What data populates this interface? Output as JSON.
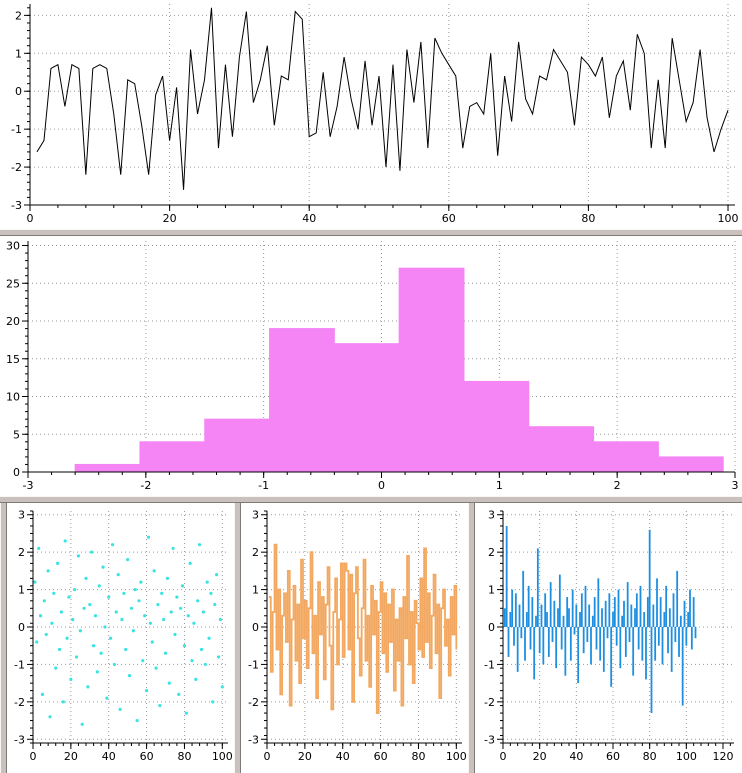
{
  "window": {
    "background": "#ffffff"
  },
  "separators": {
    "color": "#c9c1bd",
    "highlight": "#f8f5f3",
    "shadow": "#807a76"
  },
  "chart_data": [
    {
      "id": "top-line",
      "type": "line",
      "mark": "line",
      "title": "",
      "color": "#000000",
      "line_width": 1,
      "grid": true,
      "xlim": [
        0,
        101
      ],
      "ylim": [
        -3,
        2.3
      ],
      "x_ticks": [
        0,
        20,
        40,
        60,
        80,
        100
      ],
      "y_ticks": [
        -3,
        -2,
        -1,
        0,
        1,
        2
      ],
      "margins": {
        "l": 30,
        "r": 7,
        "t": 4,
        "b": 24
      },
      "values": [
        -1.6,
        -1.3,
        0.6,
        0.7,
        -0.4,
        0.7,
        0.6,
        -2.2,
        0.6,
        0.7,
        0.6,
        -0.6,
        -2.2,
        0.3,
        0.2,
        -0.9,
        -2.2,
        -0.1,
        0.4,
        -1.3,
        0.1,
        -2.6,
        1.1,
        -0.6,
        0.3,
        2.2,
        -1.5,
        0.7,
        -1.2,
        0.9,
        2.1,
        -0.3,
        0.3,
        1.2,
        -0.9,
        0.4,
        0.3,
        2.1,
        1.9,
        -1.2,
        -1.1,
        0.5,
        -1.2,
        -0.4,
        0.9,
        -0.2,
        -1.0,
        0.8,
        -0.9,
        0.4,
        -2.0,
        0.7,
        -2.1,
        1.1,
        -0.3,
        1.3,
        -1.5,
        1.4,
        1.0,
        0.7,
        0.4,
        -1.5,
        -0.4,
        -0.3,
        -0.6,
        1.0,
        -1.7,
        0.4,
        -0.8,
        1.3,
        -0.2,
        -0.6,
        0.4,
        0.3,
        1.1,
        0.8,
        0.5,
        -0.9,
        0.9,
        0.7,
        0.4,
        0.9,
        -0.7,
        0.4,
        0.8,
        -0.5,
        1.5,
        1.0,
        -1.5,
        0.3,
        -1.5,
        1.4,
        0.3,
        -0.8,
        -0.3,
        1.1,
        -0.7,
        -1.6,
        -1.0,
        -0.5
      ]
    },
    {
      "id": "histogram",
      "type": "bar",
      "title": "",
      "color": "#f584f5",
      "grid": true,
      "xlim": [
        -3,
        3
      ],
      "ylim": [
        0,
        30.6
      ],
      "x_ticks": [
        -3,
        -2,
        -1,
        0,
        1,
        2,
        3
      ],
      "y_ticks": [
        0,
        5,
        10,
        15,
        20,
        25,
        30
      ],
      "margins": {
        "l": 28,
        "r": 7,
        "t": 5,
        "b": 24
      },
      "bin_edges": [
        -2.6,
        -2.05,
        -1.5,
        -0.95,
        -0.4,
        0.15,
        0.7,
        1.25,
        1.8,
        2.35,
        2.9
      ],
      "counts": [
        1,
        4,
        7,
        19,
        17,
        27,
        12,
        6,
        4,
        2
      ]
    },
    {
      "id": "scatter-cyan",
      "type": "scatter",
      "title": "",
      "color": "#3ae3e3",
      "grid": true,
      "xlim": [
        0,
        103
      ],
      "ylim": [
        -3.1,
        3.1
      ],
      "x_ticks": [
        0,
        20,
        40,
        60,
        80,
        100
      ],
      "y_ticks": [
        -3,
        -2,
        -1,
        0,
        1,
        2,
        3
      ],
      "margins": {
        "l": 26,
        "r": 6,
        "t": 8,
        "b": 30
      },
      "values": [
        1.2,
        -0.4,
        2.1,
        0.3,
        -1.8,
        0.7,
        -0.2,
        1.5,
        -2.4,
        0.1,
        0.9,
        -1.1,
        1.7,
        -0.6,
        0.4,
        -2.0,
        2.3,
        -0.3,
        0.8,
        -1.4,
        0.2,
        1.0,
        -0.8,
        1.9,
        -0.1,
        -2.6,
        0.5,
        1.3,
        -1.6,
        0.6,
        2.0,
        -0.5,
        0.3,
        -1.2,
        1.1,
        -0.7,
        1.6,
        0.0,
        -1.9,
        0.8,
        -0.3,
        2.2,
        -1.0,
        0.4,
        1.4,
        -2.2,
        0.2,
        0.9,
        -0.6,
        1.8,
        -1.3,
        0.5,
        -0.1,
        1.0,
        -2.5,
        0.7,
        1.2,
        -0.9,
        0.3,
        -1.7,
        2.4,
        0.1,
        -0.4,
        1.5,
        -1.1,
        0.6,
        -2.1,
        0.9,
        0.2,
        -0.7,
        1.3,
        -1.5,
        0.4,
        2.1,
        -0.2,
        0.8,
        -1.8,
        0.5,
        1.1,
        -0.5,
        -2.3,
        0.3,
        1.7,
        -0.9,
        0.1,
        -1.4,
        0.7,
        2.2,
        -0.6,
        0.4,
        -1.0,
        1.2,
        -0.3,
        0.9,
        -2.0,
        0.6,
        1.4,
        -0.8,
        0.2,
        -1.6
      ]
    },
    {
      "id": "step-orange",
      "type": "line",
      "mark": "step",
      "title": "",
      "color": "#f2a860",
      "line_width": 1.8,
      "grid": true,
      "xlim": [
        0,
        103
      ],
      "ylim": [
        -3.1,
        3.1
      ],
      "x_ticks": [
        0,
        20,
        40,
        60,
        80,
        100
      ],
      "y_ticks": [
        -3,
        -2,
        -1,
        0,
        1,
        2,
        3
      ],
      "margins": {
        "l": 26,
        "r": 6,
        "t": 8,
        "b": 30
      },
      "values": [
        0.8,
        -1.2,
        0.4,
        2.2,
        -0.6,
        1.0,
        -1.8,
        0.3,
        0.9,
        -0.4,
        1.5,
        -2.1,
        0.2,
        1.1,
        -0.9,
        0.6,
        -1.5,
        1.8,
        -0.3,
        0.7,
        -1.1,
        0.5,
        2.0,
        -0.7,
        0.3,
        -1.9,
        1.2,
        -0.2,
        0.8,
        -1.4,
        0.6,
        1.6,
        -0.5,
        -2.2,
        0.4,
        1.3,
        -1.0,
        0.2,
        1.7,
        -0.8,
        1.7,
        1.5,
        -0.6,
        1.4,
        -2.0,
        0.9,
        1.6,
        -0.3,
        -1.3,
        0.5,
        1.8,
        -0.9,
        0.3,
        -1.6,
        1.1,
        -0.2,
        0.7,
        -2.3,
        0.4,
        1.2,
        -0.7,
        0.9,
        -1.2,
        0.6,
        -0.4,
        1.0,
        -1.7,
        0.2,
        -0.9,
        0.5,
        -2.1,
        0.8,
        -0.3,
        1.9,
        -1.0,
        0.4,
        -1.5,
        0.7,
        0.1,
        -0.6,
        1.3,
        -0.8,
        2.1,
        -0.4,
        0.9,
        -1.1,
        0.3,
        1.4,
        -0.7,
        0.6,
        -1.9,
        0.5,
        1.0,
        -0.5,
        0.2,
        -1.3,
        0.8,
        -0.2,
        1.1,
        -0.6
      ]
    },
    {
      "id": "stem-blue",
      "type": "line",
      "mark": "stem",
      "title": "",
      "color": "#1e8fe0",
      "line_width": 1.8,
      "grid": true,
      "xlim": [
        0,
        126
      ],
      "ylim": [
        -3.1,
        3.1
      ],
      "x_ticks": [
        0,
        20,
        40,
        60,
        80,
        100,
        120
      ],
      "y_ticks": [
        -3,
        -2,
        -1,
        0,
        1,
        2,
        3
      ],
      "margins": {
        "l": 28,
        "r": 8,
        "t": 8,
        "b": 30
      },
      "values": [
        0.5,
        2.7,
        -0.8,
        0.4,
        1.0,
        -0.5,
        0.9,
        -1.2,
        0.6,
        -0.3,
        1.5,
        -0.9,
        0.4,
        1.1,
        -0.6,
        0.8,
        -1.4,
        0.3,
        2.1,
        -0.7,
        0.6,
        -1.0,
        0.9,
        0.4,
        -0.8,
        1.2,
        -0.4,
        0.7,
        -1.1,
        0.5,
        1.4,
        -0.6,
        0.3,
        -1.3,
        0.8,
        0.5,
        -0.9,
        1.0,
        -0.2,
        0.6,
        -1.5,
        0.4,
        0.9,
        -0.7,
        1.1,
        -0.4,
        0.6,
        -1.0,
        0.3,
        0.8,
        -0.6,
        1.3,
        -0.9,
        0.5,
        -1.2,
        0.7,
        -0.3,
        0.9,
        -1.6,
        0.4,
        0.8,
        -0.5,
        1.0,
        -1.1,
        0.3,
        0.7,
        -0.8,
        1.2,
        -0.4,
        0.6,
        -1.3,
        0.5,
        0.9,
        -0.6,
        1.1,
        -0.9,
        0.4,
        -1.4,
        0.8,
        2.6,
        -2.3,
        0.6,
        -0.9,
        1.3,
        -0.5,
        0.8,
        -1.0,
        0.4,
        1.1,
        -0.7,
        0.5,
        -1.2,
        0.9,
        -0.4,
        1.5,
        -0.8,
        0.3,
        -2.1,
        0.7,
        -0.5,
        0.4,
        1.0,
        -0.6,
        0.8,
        -0.3
      ]
    }
  ]
}
